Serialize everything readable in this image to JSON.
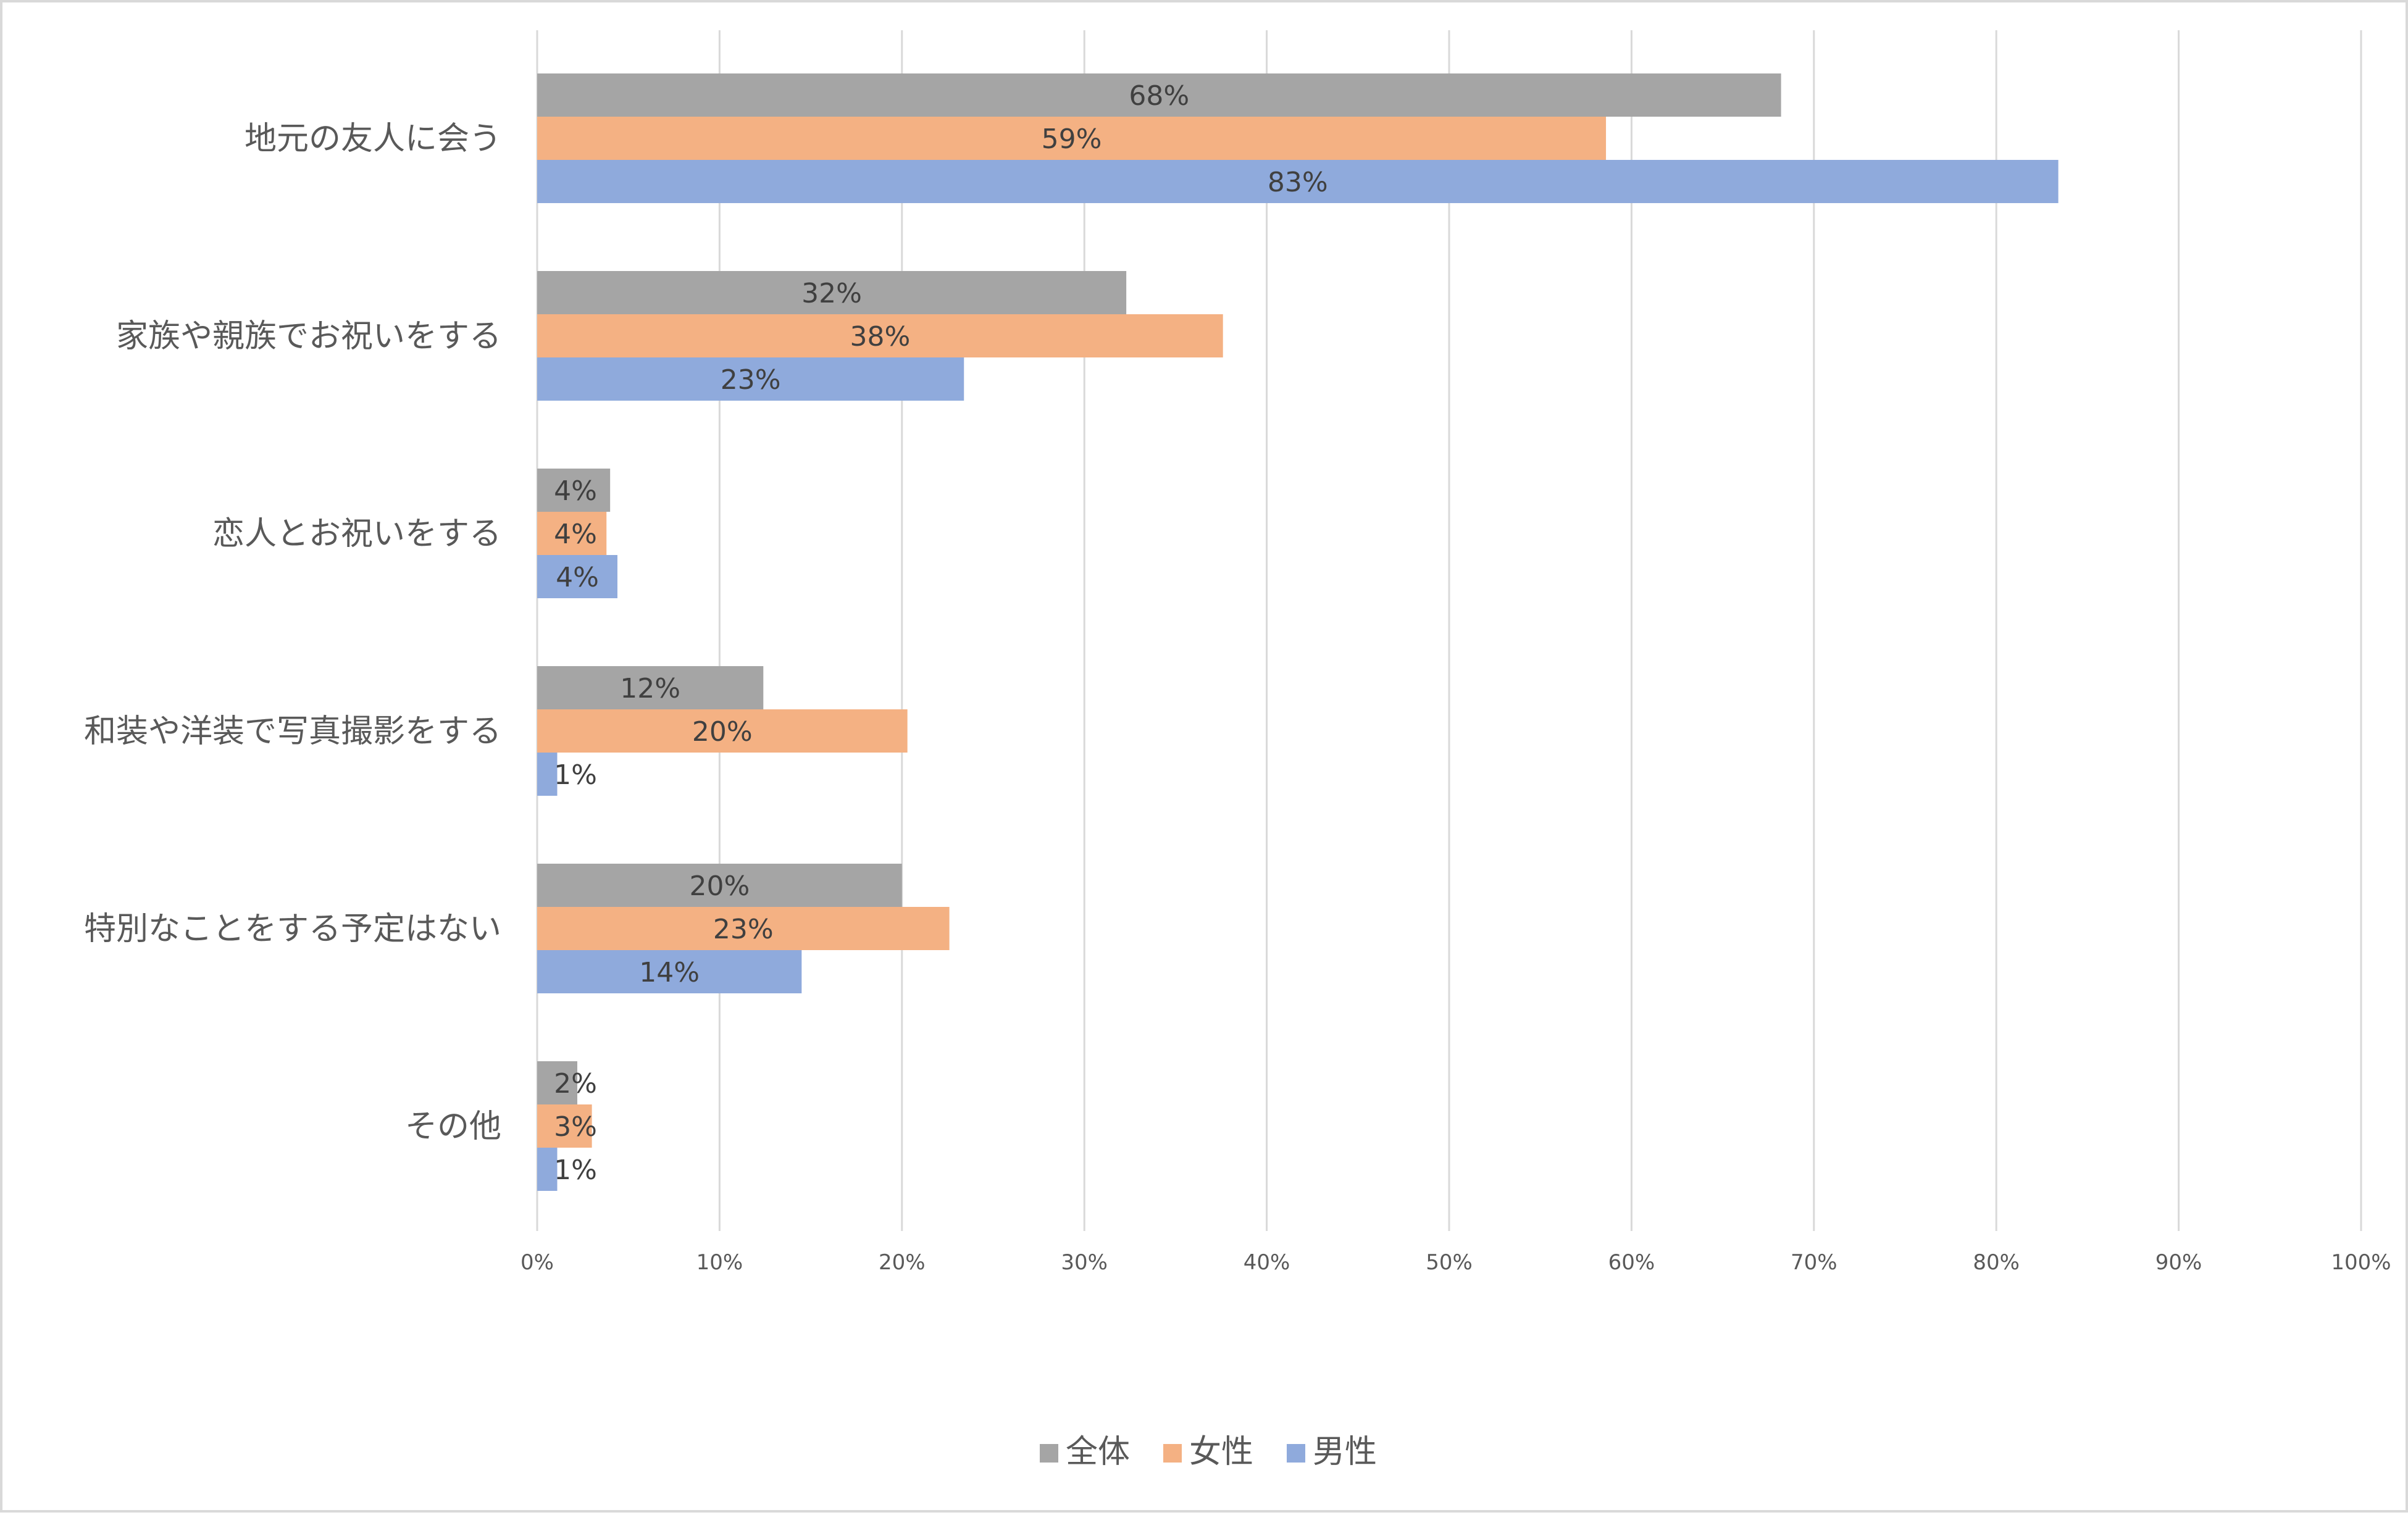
{
  "chart_data": {
    "type": "bar",
    "orientation": "horizontal",
    "title": "",
    "xlabel": "",
    "ylabel": "",
    "xlim": [
      0,
      100
    ],
    "x_ticks": [
      0,
      10,
      20,
      30,
      40,
      50,
      60,
      70,
      80,
      90,
      100
    ],
    "x_tick_labels": [
      "0%",
      "10%",
      "20%",
      "30%",
      "40%",
      "50%",
      "60%",
      "70%",
      "80%",
      "90%",
      "100%"
    ],
    "grid": true,
    "legend_position": "bottom-center",
    "categories": [
      "地元の友人に会う",
      "家族や親族でお祝いをする",
      "恋人とお祝いをする",
      "和装や洋装で写真撮影をする",
      "特別なことをする予定はない",
      "その他"
    ],
    "series": [
      {
        "name": "全体",
        "color": "#a5a5a5",
        "values": [
          68.2,
          32.3,
          4.0,
          12.4,
          20.0,
          2.2
        ],
        "labels": [
          "68%",
          "32%",
          "4%",
          "12%",
          "20%",
          "2%"
        ]
      },
      {
        "name": "女性",
        "color": "#f4b183",
        "values": [
          58.6,
          37.6,
          3.8,
          20.3,
          22.6,
          3.0
        ],
        "labels": [
          "59%",
          "38%",
          "4%",
          "20%",
          "23%",
          "3%"
        ]
      },
      {
        "name": "男性",
        "color": "#8faadc",
        "values": [
          83.4,
          23.4,
          4.4,
          1.1,
          14.5,
          1.1
        ],
        "labels": [
          "83%",
          "23%",
          "4%",
          "1%",
          "14%",
          "1%"
        ]
      }
    ]
  }
}
